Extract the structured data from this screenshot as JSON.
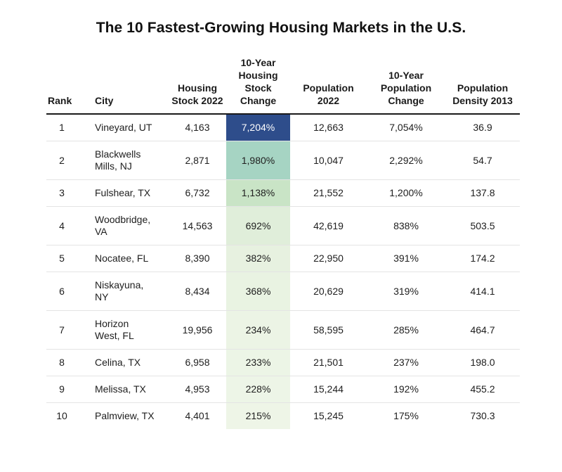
{
  "page": {
    "title": "The 10 Fastest-Growing Housing Markets in the U.S."
  },
  "colors": {
    "header_rule": "#1a1a1a",
    "row_divider": "#e4e4e4",
    "text": "#202020",
    "heatmap_max": "#2e4d8b",
    "heatmap_min": "#eef5e7"
  },
  "table": {
    "columns": [
      {
        "key": "rank",
        "label": "Rank"
      },
      {
        "key": "city",
        "label": "City"
      },
      {
        "key": "housing_stock_2022",
        "label": "Housing Stock 2022"
      },
      {
        "key": "housing_stock_change",
        "label": "10-Year Housing Stock Change"
      },
      {
        "key": "population_2022",
        "label": "Population 2022"
      },
      {
        "key": "population_change",
        "label": "10-Year Population Change"
      },
      {
        "key": "population_density_2013",
        "label": "Population Density 2013"
      }
    ],
    "rows": [
      {
        "rank": "1",
        "city": "Vineyard, UT",
        "housing_stock_2022": "4,163",
        "housing_stock_change": "7,204%",
        "population_2022": "12,663",
        "population_change": "7,054%",
        "population_density_2013": "36.9",
        "change_bg": "#2e4d8b",
        "change_fg": "#ffffff"
      },
      {
        "rank": "2",
        "city": "Blackwells Mills, NJ",
        "housing_stock_2022": "2,871",
        "housing_stock_change": "1,980%",
        "population_2022": "10,047",
        "population_change": "2,292%",
        "population_density_2013": "54.7",
        "change_bg": "#a6d4c3",
        "change_fg": "#202020"
      },
      {
        "rank": "3",
        "city": "Fulshear, TX",
        "housing_stock_2022": "6,732",
        "housing_stock_change": "1,138%",
        "population_2022": "21,552",
        "population_change": "1,200%",
        "population_density_2013": "137.8",
        "change_bg": "#c9e4c6",
        "change_fg": "#202020"
      },
      {
        "rank": "4",
        "city": "Woodbridge, VA",
        "housing_stock_2022": "14,563",
        "housing_stock_change": "692%",
        "population_2022": "42,619",
        "population_change": "838%",
        "population_density_2013": "503.5",
        "change_bg": "#e0eeda",
        "change_fg": "#202020"
      },
      {
        "rank": "5",
        "city": "Nocatee, FL",
        "housing_stock_2022": "8,390",
        "housing_stock_change": "382%",
        "population_2022": "22,950",
        "population_change": "391%",
        "population_density_2013": "174.2",
        "change_bg": "#e7f1e0",
        "change_fg": "#202020"
      },
      {
        "rank": "6",
        "city": "Niskayuna, NY",
        "housing_stock_2022": "8,434",
        "housing_stock_change": "368%",
        "population_2022": "20,629",
        "population_change": "319%",
        "population_density_2013": "414.1",
        "change_bg": "#e9f3e2",
        "change_fg": "#202020"
      },
      {
        "rank": "7",
        "city": "Horizon West, FL",
        "housing_stock_2022": "19,956",
        "housing_stock_change": "234%",
        "population_2022": "58,595",
        "population_change": "285%",
        "population_density_2013": "464.7",
        "change_bg": "#ecf4e5",
        "change_fg": "#202020"
      },
      {
        "rank": "8",
        "city": "Celina, TX",
        "housing_stock_2022": "6,958",
        "housing_stock_change": "233%",
        "population_2022": "21,501",
        "population_change": "237%",
        "population_density_2013": "198.0",
        "change_bg": "#ecf5e6",
        "change_fg": "#202020"
      },
      {
        "rank": "9",
        "city": "Melissa, TX",
        "housing_stock_2022": "4,953",
        "housing_stock_change": "228%",
        "population_2022": "15,244",
        "population_change": "192%",
        "population_density_2013": "455.2",
        "change_bg": "#edf5e7",
        "change_fg": "#202020"
      },
      {
        "rank": "10",
        "city": "Palmview, TX",
        "housing_stock_2022": "4,401",
        "housing_stock_change": "215%",
        "population_2022": "15,245",
        "population_change": "175%",
        "population_density_2013": "730.3",
        "change_bg": "#eef5e7",
        "change_fg": "#202020"
      }
    ]
  },
  "chart_data": {
    "type": "table",
    "title": "The 10 Fastest-Growing Housing Markets in the U.S.",
    "columns": [
      "Rank",
      "City",
      "Housing Stock 2022",
      "10-Year Housing Stock Change",
      "Population 2022",
      "10-Year Population Change",
      "Population Density 2013"
    ],
    "rows": [
      [
        1,
        "Vineyard, UT",
        4163,
        "7,204%",
        12663,
        "7,054%",
        36.9
      ],
      [
        2,
        "Blackwells Mills, NJ",
        2871,
        "1,980%",
        10047,
        "2,292%",
        54.7
      ],
      [
        3,
        "Fulshear, TX",
        6732,
        "1,138%",
        21552,
        "1,200%",
        137.8
      ],
      [
        4,
        "Woodbridge, VA",
        14563,
        "692%",
        42619,
        "838%",
        503.5
      ],
      [
        5,
        "Nocatee, FL",
        8390,
        "382%",
        22950,
        "391%",
        174.2
      ],
      [
        6,
        "Niskayuna, NY",
        8434,
        "368%",
        20629,
        "319%",
        414.1
      ],
      [
        7,
        "Horizon West, FL",
        19956,
        "234%",
        58595,
        "285%",
        464.7
      ],
      [
        8,
        "Celina, TX",
        6958,
        "233%",
        21501,
        "237%",
        198.0
      ],
      [
        9,
        "Melissa, TX",
        4953,
        "228%",
        15244,
        "192%",
        455.2
      ],
      [
        10,
        "Palmview, TX",
        4401,
        "215%",
        15245,
        "175%",
        730.3
      ]
    ],
    "notes": "Column '10-Year Housing Stock Change' is heat-shaded from dark blue (highest, 7,204%) through greens to pale green (lowest, 215%)."
  }
}
